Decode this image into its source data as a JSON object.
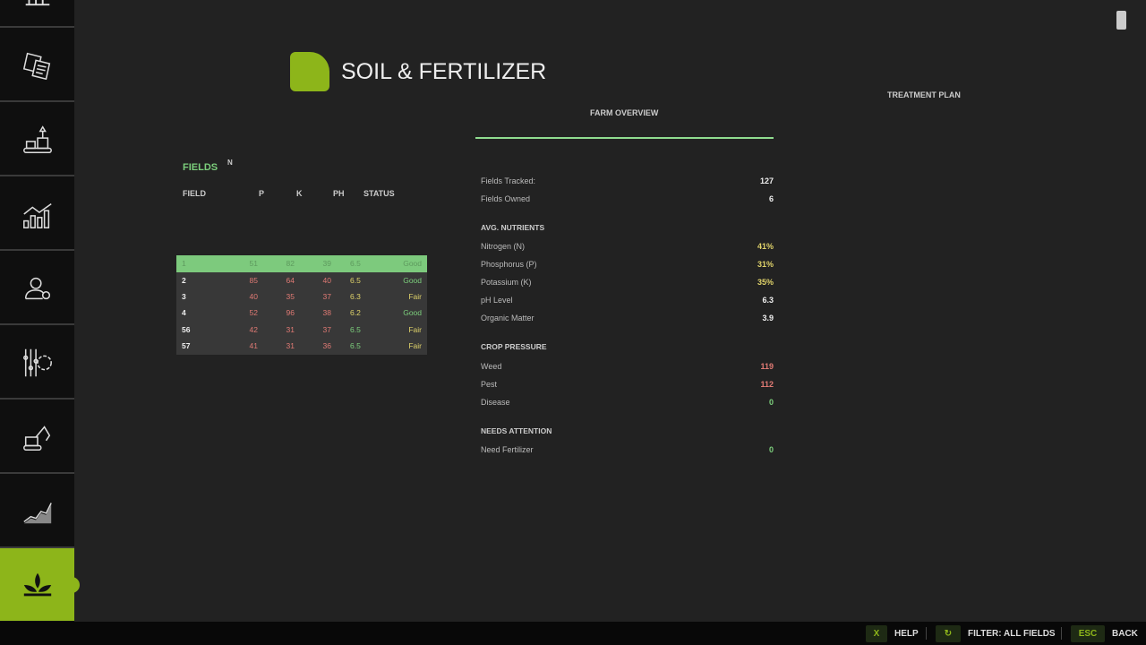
{
  "header": {
    "title": "SOIL & FERTILIZER",
    "accent": "#8db51a"
  },
  "sidebar": {
    "items": [
      {
        "icon": "farm-icon"
      },
      {
        "icon": "contracts-icon"
      },
      {
        "icon": "production-icon"
      },
      {
        "icon": "statistics-icon"
      },
      {
        "icon": "workers-icon"
      },
      {
        "icon": "settings-icon"
      },
      {
        "icon": "excavator-icon"
      },
      {
        "icon": "prices-icon"
      },
      {
        "icon": "soil-plant-icon",
        "active": true
      }
    ]
  },
  "tabs": {
    "farm_overview": "FARM OVERVIEW",
    "treatment_plan": "TREATMENT PLAN"
  },
  "fields": {
    "title": "FIELDS",
    "columns": {
      "field": "FIELD",
      "n": "N",
      "p": "P",
      "k": "K",
      "ph": "PH",
      "status": "STATUS"
    },
    "rows": [
      {
        "field": "1",
        "n": "51",
        "p": "82",
        "k": "39",
        "ph": "6.5",
        "status": "Good"
      },
      {
        "field": "2",
        "n": "85",
        "p": "64",
        "k": "40",
        "ph": "6.5",
        "status": "Good"
      },
      {
        "field": "3",
        "n": "40",
        "p": "35",
        "k": "37",
        "ph": "6.3",
        "status": "Fair"
      },
      {
        "field": "4",
        "n": "52",
        "p": "96",
        "k": "38",
        "ph": "6.2",
        "status": "Good"
      },
      {
        "field": "56",
        "n": "42",
        "p": "31",
        "k": "37",
        "ph": "6.5",
        "status": "Fair"
      },
      {
        "field": "57",
        "n": "41",
        "p": "31",
        "k": "36",
        "ph": "6.5",
        "status": "Fair"
      }
    ]
  },
  "overview": {
    "fields_tracked": {
      "label": "Fields Tracked:",
      "value": "127"
    },
    "fields_owned": {
      "label": "Fields Owned",
      "value": "6"
    },
    "avg_nutrients": "AVG. NUTRIENTS",
    "nitrogen": {
      "label": "Nitrogen (N)",
      "value": "41%"
    },
    "phosphorus": {
      "label": "Phosphorus (P)",
      "value": "31%"
    },
    "potassium": {
      "label": "Potassium (K)",
      "value": "35%"
    },
    "ph": {
      "label": "pH Level",
      "value": "6.3"
    },
    "organic": {
      "label": "Organic Matter",
      "value": "3.9"
    },
    "crop_pressure": "CROP PRESSURE",
    "weed": {
      "label": "Weed",
      "value": "119"
    },
    "pest": {
      "label": "Pest",
      "value": "112"
    },
    "disease": {
      "label": "Disease",
      "value": "0"
    },
    "needs_attention": "NEEDS ATTENTION",
    "need_fertilizer": {
      "label": "Need Fertilizer",
      "value": "0"
    }
  },
  "footer": {
    "help_key": "X",
    "help": "HELP",
    "filter": "FILTER: ALL FIELDS",
    "back_key": "ESC",
    "back": "BACK"
  }
}
